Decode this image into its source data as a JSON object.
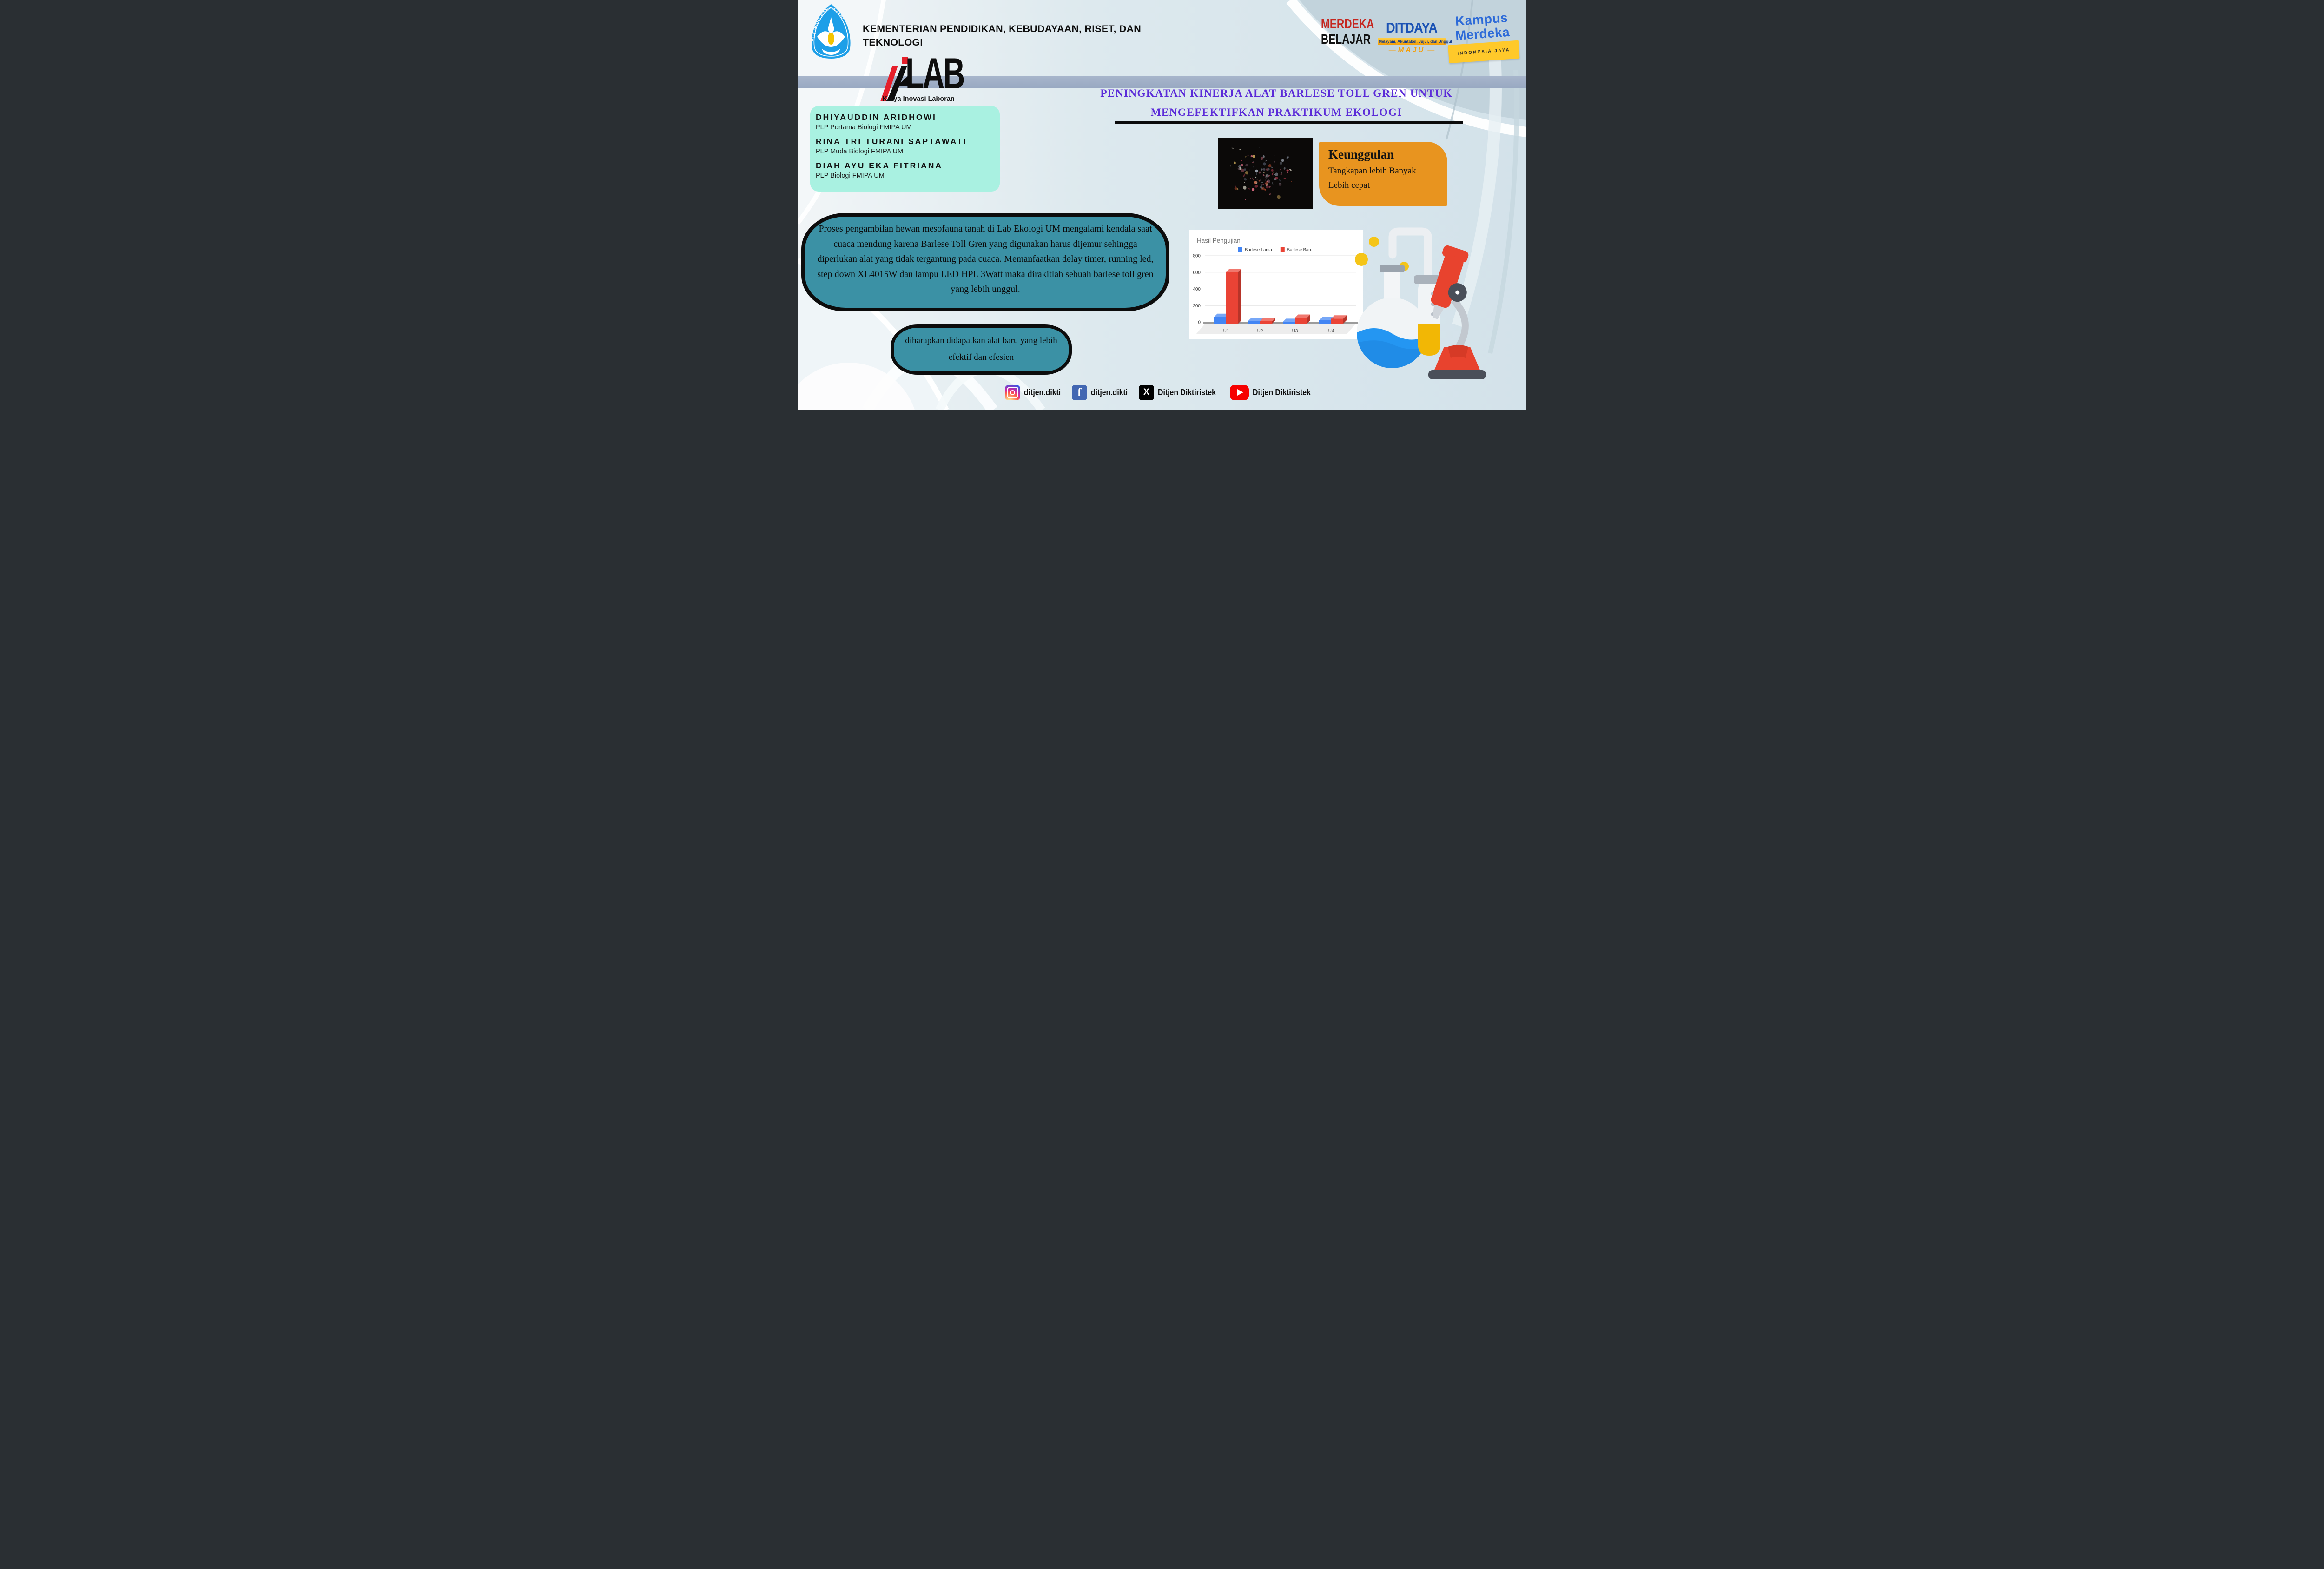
{
  "ministry": {
    "line1": "KEMENTERIAN PENDIDIKAN, KEBUDAYAAN, RISET, DAN",
    "line2": "TEKNOLOGI",
    "emblem_motto": "TUT WURI HANDAYANI"
  },
  "brand_logos": {
    "merdeka_line1": "MERDEKA",
    "merdeka_line2": "BELAJAR",
    "ditdaya_name": "DITDAYA",
    "ditdaya_tagline": "Melayani, Akuntabel, Jujur, dan Unggul",
    "ditdaya_sub": "MAJU",
    "kampus_line1": "Kampus",
    "kampus_line2": "Merdeka",
    "kampus_sub": "INDONESIA JAYA"
  },
  "kilab": {
    "wordmark": "LAB",
    "tagline": "Karya Inovasi Laboran"
  },
  "authors": [
    {
      "name": "DHIYAUDDIN ARIDHOWI",
      "role": "PLP Pertama Biologi FMIPA UM"
    },
    {
      "name": "RINA TRI TURANI SAPTAWATI",
      "role": "PLP Muda Biologi FMIPA UM"
    },
    {
      "name": "DIAH AYU EKA FITRIANA",
      "role": "PLP Biologi FMIPA UM"
    }
  ],
  "title": {
    "line1": "PENINGKATAN KINERJA ALAT BARLESE  TOLL GREN UNTUK",
    "line2": "MENGEFEKTIFKAN PRAKTIKUM EKOLOGI"
  },
  "keunggulan": {
    "heading": "Keunggulan",
    "point1": "Tangkapan lebih Banyak",
    "point2": "Lebih cepat"
  },
  "abstract": "Proses pengambilan hewan mesofauna tanah di Lab Ekologi UM mengalami kendala saat cuaca mendung karena Barlese Toll Gren yang digunakan harus dijemur sehingga diperlukan alat yang tidak tergantung pada cuaca. Memanfaatkan delay timer, running led, step down XL4015W dan lampu LED HPL 3Watt maka dirakitlah sebuah barlese toll gren yang lebih unggul.",
  "expectation": "diharapkan didapatkan alat baru yang lebih efektif dan efesien",
  "chart_data": {
    "type": "bar",
    "style": "3d-column",
    "title": "Hasil Pengujian",
    "categories": [
      "U1",
      "U2",
      "U3",
      "U4"
    ],
    "series": [
      {
        "name": "Barlese Lama",
        "color": "#4285F4",
        "values": [
          80,
          30,
          20,
          40
        ]
      },
      {
        "name": "Barlese Baru",
        "color": "#EA4335",
        "values": [
          620,
          30,
          70,
          60
        ]
      }
    ],
    "ylim": [
      0,
      800
    ],
    "yticks": [
      0,
      200,
      400,
      600,
      800
    ],
    "grid": true,
    "legend_position": "top"
  },
  "social": [
    {
      "platform": "instagram",
      "handle": "ditjen.dikti"
    },
    {
      "platform": "facebook",
      "handle": "ditjen.dikti"
    },
    {
      "platform": "x",
      "handle": "Ditjen Diktiristek"
    },
    {
      "platform": "youtube",
      "handle": "Ditjen Diktiristek"
    }
  ],
  "colors": {
    "title_purple": "#5b2bd8",
    "teal_box": "#3b91a5",
    "mint_box": "#a9f1e1",
    "orange_box": "#e8941f",
    "header_band": "#9fafc7",
    "merdeka_red": "#c5261f",
    "ditdaya_blue": "#1b52b4",
    "kampus_blue": "#2e6bd8"
  }
}
